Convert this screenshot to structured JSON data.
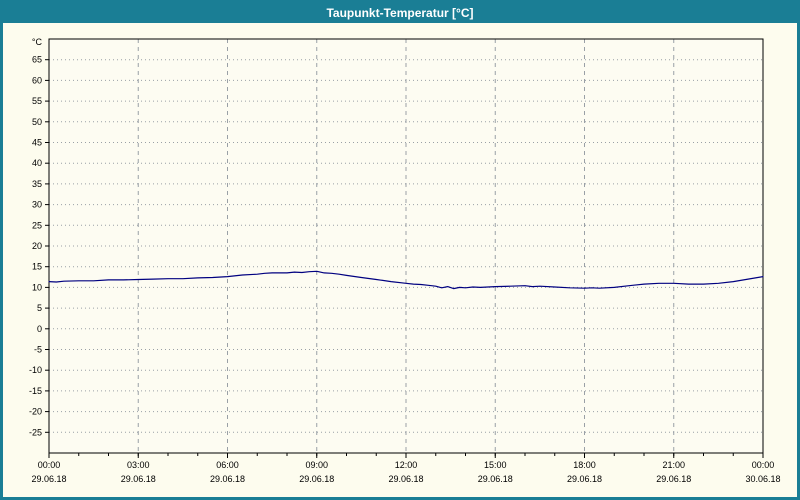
{
  "window": {
    "title": "Taupunkt-Temperatur [°C]"
  },
  "colors": {
    "titlebar": "#1a7e95",
    "border": "#1a7e95",
    "background": "#fdfcee",
    "plot_background": "#fdfcf2",
    "frame": "#000000",
    "grid": "#9aa0a6",
    "line": "#000080",
    "tick_text": "#000000"
  },
  "chart_data": {
    "type": "line",
    "title": "Taupunkt-Temperatur [°C]",
    "xlabel": "",
    "ylabel": "°C",
    "ylim": [
      -30,
      70
    ],
    "xlim": [
      0,
      24
    ],
    "grid": true,
    "legend_position": "none",
    "yticks": [
      65,
      60,
      55,
      50,
      45,
      40,
      35,
      30,
      25,
      20,
      15,
      10,
      5,
      0,
      -5,
      -10,
      -15,
      -20,
      -25
    ],
    "xticks": [
      {
        "hour": 0,
        "time": "00:00",
        "date": "29.06.18"
      },
      {
        "hour": 3,
        "time": "03:00",
        "date": "29.06.18"
      },
      {
        "hour": 6,
        "time": "06:00",
        "date": "29.06.18"
      },
      {
        "hour": 9,
        "time": "09:00",
        "date": "29.06.18"
      },
      {
        "hour": 12,
        "time": "12:00",
        "date": "29.06.18"
      },
      {
        "hour": 15,
        "time": "15:00",
        "date": "29.06.18"
      },
      {
        "hour": 18,
        "time": "18:00",
        "date": "29.06.18"
      },
      {
        "hour": 21,
        "time": "21:00",
        "date": "29.06.18"
      },
      {
        "hour": 24,
        "time": "00:00",
        "date": "30.06.18"
      }
    ],
    "series": [
      {
        "name": "Taupunkt-Temperatur",
        "color": "#000080",
        "points": [
          [
            0,
            11.4
          ],
          [
            0.25,
            11.3
          ],
          [
            0.5,
            11.5
          ],
          [
            1,
            11.6
          ],
          [
            1.5,
            11.6
          ],
          [
            2,
            11.8
          ],
          [
            2.5,
            11.8
          ],
          [
            3,
            11.9
          ],
          [
            3.5,
            12.0
          ],
          [
            4,
            12.1
          ],
          [
            4.5,
            12.1
          ],
          [
            5,
            12.3
          ],
          [
            5.5,
            12.4
          ],
          [
            6,
            12.6
          ],
          [
            6.5,
            13.0
          ],
          [
            7,
            13.2
          ],
          [
            7.25,
            13.4
          ],
          [
            7.5,
            13.5
          ],
          [
            8,
            13.5
          ],
          [
            8.25,
            13.7
          ],
          [
            8.5,
            13.6
          ],
          [
            8.75,
            13.8
          ],
          [
            9,
            13.9
          ],
          [
            9.25,
            13.5
          ],
          [
            9.5,
            13.4
          ],
          [
            9.75,
            13.2
          ],
          [
            10,
            12.9
          ],
          [
            10.5,
            12.4
          ],
          [
            11,
            11.9
          ],
          [
            11.5,
            11.4
          ],
          [
            12,
            11.0
          ],
          [
            12.25,
            10.8
          ],
          [
            12.5,
            10.7
          ],
          [
            12.75,
            10.5
          ],
          [
            13,
            10.3
          ],
          [
            13.2,
            9.9
          ],
          [
            13.4,
            10.2
          ],
          [
            13.6,
            9.7
          ],
          [
            13.8,
            10.0
          ],
          [
            14,
            9.9
          ],
          [
            14.25,
            10.1
          ],
          [
            14.5,
            10.0
          ],
          [
            15,
            10.2
          ],
          [
            15.5,
            10.3
          ],
          [
            16,
            10.4
          ],
          [
            16.25,
            10.2
          ],
          [
            16.5,
            10.3
          ],
          [
            17,
            10.1
          ],
          [
            17.5,
            9.9
          ],
          [
            18,
            9.8
          ],
          [
            18.25,
            9.9
          ],
          [
            18.5,
            9.8
          ],
          [
            19,
            10.0
          ],
          [
            19.5,
            10.4
          ],
          [
            20,
            10.8
          ],
          [
            20.5,
            11.0
          ],
          [
            21,
            11.0
          ],
          [
            21.5,
            10.8
          ],
          [
            22,
            10.8
          ],
          [
            22.5,
            11.0
          ],
          [
            23,
            11.4
          ],
          [
            23.5,
            12.0
          ],
          [
            24,
            12.6
          ]
        ]
      }
    ]
  }
}
